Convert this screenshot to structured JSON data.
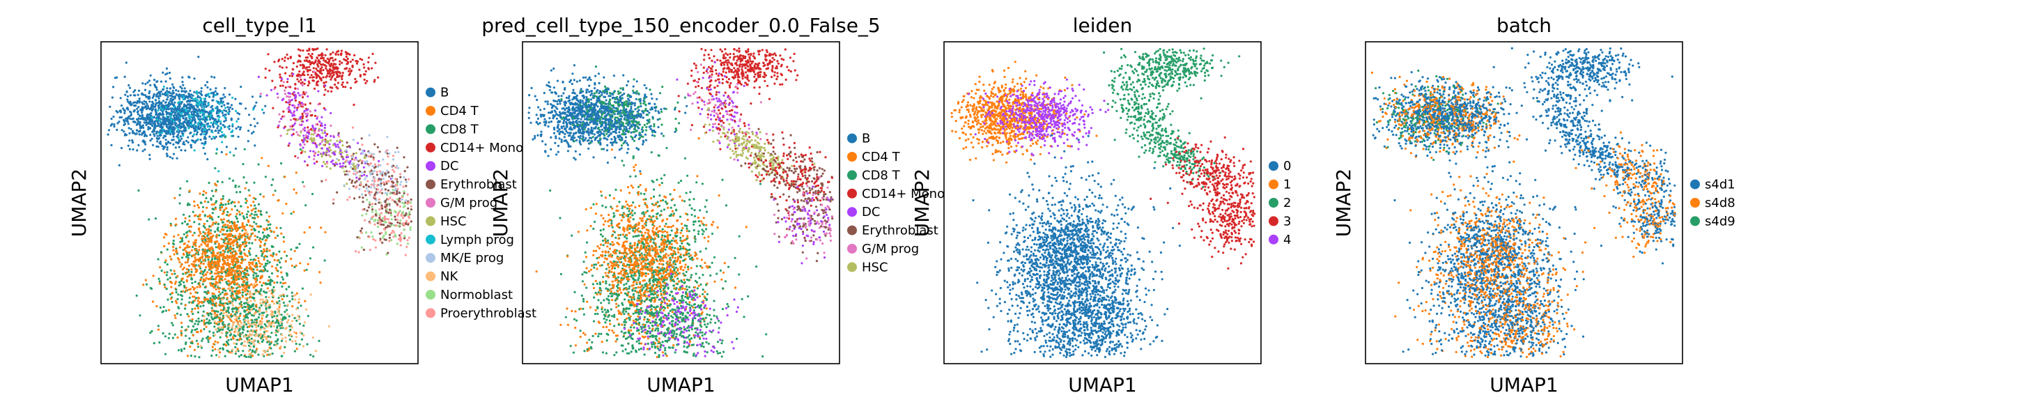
{
  "chart_data": [
    {
      "type": "scatter",
      "title": "cell_type_l1",
      "xlabel": "UMAP1",
      "ylabel": "UMAP2",
      "legend_placement": "right",
      "legend": [
        {
          "name": "B",
          "color": "#1f77b4"
        },
        {
          "name": "CD4 T",
          "color": "#ff7f0e"
        },
        {
          "name": "CD8 T",
          "color": "#279e68"
        },
        {
          "name": "CD14+ Mono",
          "color": "#d62728"
        },
        {
          "name": "DC",
          "color": "#aa40fc"
        },
        {
          "name": "Erythroblast",
          "color": "#8c564b"
        },
        {
          "name": "G/M prog",
          "color": "#e377c2"
        },
        {
          "name": "HSC",
          "color": "#b5bd61"
        },
        {
          "name": "Lymph prog",
          "color": "#17becf"
        },
        {
          "name": "MK/E prog",
          "color": "#aec7e8"
        },
        {
          "name": "NK",
          "color": "#ffbb78"
        },
        {
          "name": "Normoblast",
          "color": "#98df8a"
        },
        {
          "name": "Proerythroblast",
          "color": "#ff9896"
        }
      ]
    },
    {
      "type": "scatter",
      "title": "pred_cell_type_150_encoder_0.0_False_5",
      "xlabel": "UMAP1",
      "ylabel": "UMAP2",
      "legend_placement": "right",
      "legend": [
        {
          "name": "B",
          "color": "#1f77b4"
        },
        {
          "name": "CD4 T",
          "color": "#ff7f0e"
        },
        {
          "name": "CD8 T",
          "color": "#279e68"
        },
        {
          "name": "CD14+ Mono",
          "color": "#d62728"
        },
        {
          "name": "DC",
          "color": "#aa40fc"
        },
        {
          "name": "Erythroblast",
          "color": "#8c564b"
        },
        {
          "name": "G/M prog",
          "color": "#e377c2"
        },
        {
          "name": "HSC",
          "color": "#b5bd61"
        }
      ]
    },
    {
      "type": "scatter",
      "title": "leiden",
      "xlabel": "UMAP1",
      "ylabel": "UMAP2",
      "legend_placement": "right",
      "legend": [
        {
          "name": "0",
          "color": "#1f77b4"
        },
        {
          "name": "1",
          "color": "#ff7f0e"
        },
        {
          "name": "2",
          "color": "#279e68"
        },
        {
          "name": "3",
          "color": "#d62728"
        },
        {
          "name": "4",
          "color": "#aa40fc"
        }
      ]
    },
    {
      "type": "scatter",
      "title": "batch",
      "xlabel": "UMAP1",
      "ylabel": "UMAP2",
      "legend_placement": "right",
      "legend": [
        {
          "name": "s4d1",
          "color": "#1f77b4"
        },
        {
          "name": "s4d8",
          "color": "#ff7f0e"
        },
        {
          "name": "s4d9",
          "color": "#279e68"
        }
      ]
    }
  ]
}
